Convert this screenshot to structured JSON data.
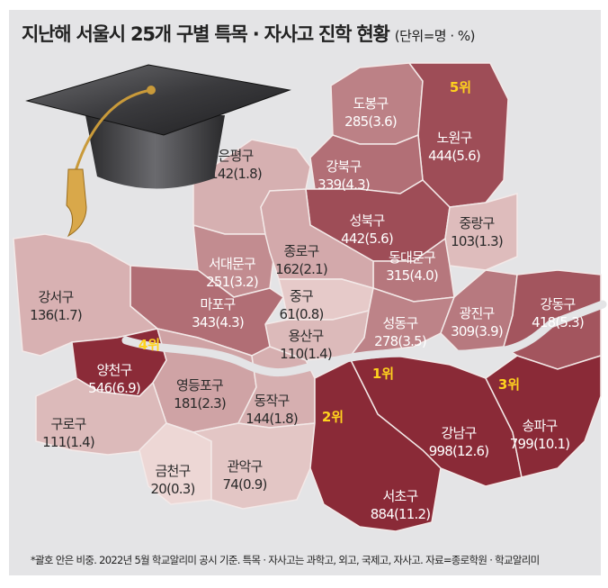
{
  "title": "지난해 서울시 25개 구별 특목 · 자사고 진학 현황",
  "unit": "(단위=명 · %)",
  "footnote": "*괄호 안은 비중. 2022년 5월 학교알리미 공시 기준. 특목 · 자사고는 과학고, 외고, 국제고, 자사고. 자료=종로학원 · 학교알리미",
  "icon": "graduation-cap-icon",
  "colors": {
    "low": "#f1dedb",
    "high": "#8a2a37",
    "rank": "#ffd21e",
    "background": "#e4e4e6"
  },
  "districts": [
    {
      "id": "dobong",
      "name": "도봉구",
      "value": "285(3.6)",
      "count": 285
    },
    {
      "id": "nowon",
      "name": "노원구",
      "value": "444(5.6)",
      "count": 444,
      "rank": "5위"
    },
    {
      "id": "gangbuk",
      "name": "강북구",
      "value": "339(4.3)",
      "count": 339
    },
    {
      "id": "seongbuk",
      "name": "성북구",
      "value": "442(5.6)",
      "count": 442
    },
    {
      "id": "jungnang",
      "name": "중랑구",
      "value": "103(1.3)",
      "count": 103
    },
    {
      "id": "dongdaemun",
      "name": "동대문구",
      "value": "315(4.0)",
      "count": 315
    },
    {
      "id": "eunpyeong",
      "name": "은평구",
      "value": "142(1.8)",
      "count": 142
    },
    {
      "id": "seodaemun",
      "name": "서대문구",
      "value": "251(3.2)",
      "count": 251
    },
    {
      "id": "jongno",
      "name": "종로구",
      "value": "162(2.1)",
      "count": 162
    },
    {
      "id": "junggu",
      "name": "중구",
      "value": "61(0.8)",
      "count": 61
    },
    {
      "id": "yongsan",
      "name": "용산구",
      "value": "110(1.4)",
      "count": 110
    },
    {
      "id": "mapo",
      "name": "마포구",
      "value": "343(4.3)",
      "count": 343
    },
    {
      "id": "seongdong",
      "name": "성동구",
      "value": "278(3.5)",
      "count": 278
    },
    {
      "id": "gwangjin",
      "name": "광진구",
      "value": "309(3.9)",
      "count": 309
    },
    {
      "id": "gangdong",
      "name": "강동구",
      "value": "418(5.3)",
      "count": 418
    },
    {
      "id": "gangseo",
      "name": "강서구",
      "value": "136(1.7)",
      "count": 136
    },
    {
      "id": "yangcheon",
      "name": "양천구",
      "value": "546(6.9)",
      "count": 546,
      "rank": "4위"
    },
    {
      "id": "yeongdeungpo",
      "name": "영등포구",
      "value": "181(2.3)",
      "count": 181
    },
    {
      "id": "guro",
      "name": "구로구",
      "value": "111(1.4)",
      "count": 111
    },
    {
      "id": "dongjak",
      "name": "동작구",
      "value": "144(1.8)",
      "count": 144
    },
    {
      "id": "geumcheon",
      "name": "금천구",
      "value": "20(0.3)",
      "count": 20
    },
    {
      "id": "gwanak",
      "name": "관악구",
      "value": "74(0.9)",
      "count": 74
    },
    {
      "id": "gangnam",
      "name": "강남구",
      "value": "998(12.6)",
      "count": 998,
      "rank": "1위"
    },
    {
      "id": "seocho",
      "name": "서초구",
      "value": "884(11.2)",
      "count": 884,
      "rank": "2위"
    },
    {
      "id": "songpa",
      "name": "송파구",
      "value": "799(10.1)",
      "count": 799,
      "rank": "3위"
    }
  ]
}
